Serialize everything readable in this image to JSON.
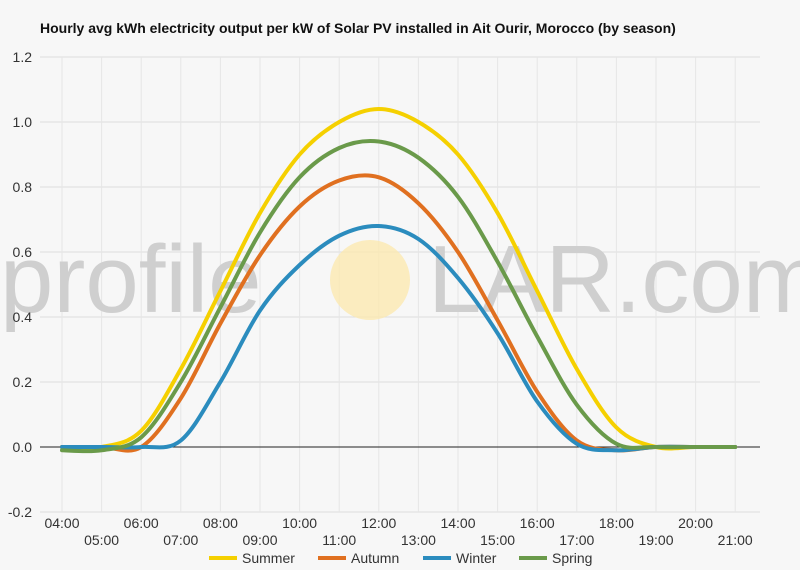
{
  "chart_data": {
    "type": "line",
    "title": "Hourly avg kWh electricity output per kW of Solar PV installed in Ait Ourir, Morocco (by season)",
    "xlabel": "",
    "ylabel": "",
    "ylim": [
      -0.2,
      1.2
    ],
    "yticks": [
      "-0.2",
      "0.0",
      "0.2",
      "0.4",
      "0.6",
      "0.8",
      "1.0",
      "1.2"
    ],
    "categories": [
      "04:00",
      "05:00",
      "06:00",
      "07:00",
      "08:00",
      "09:00",
      "10:00",
      "11:00",
      "12:00",
      "13:00",
      "14:00",
      "15:00",
      "16:00",
      "17:00",
      "18:00",
      "19:00",
      "20:00",
      "21:00"
    ],
    "grid": true,
    "legend": "bottom",
    "series": [
      {
        "name": "Summer",
        "color": "#f5d000",
        "values": [
          0.0,
          0.0,
          0.05,
          0.24,
          0.48,
          0.72,
          0.9,
          1.0,
          1.04,
          1.0,
          0.9,
          0.72,
          0.48,
          0.24,
          0.06,
          0.0,
          0.0,
          0.0
        ]
      },
      {
        "name": "Autumn",
        "color": "#e07020",
        "values": [
          0.0,
          0.0,
          0.0,
          0.15,
          0.38,
          0.59,
          0.74,
          0.82,
          0.83,
          0.75,
          0.6,
          0.39,
          0.17,
          0.02,
          -0.01,
          0.0,
          0.0,
          0.0
        ]
      },
      {
        "name": "Winter",
        "color": "#2b8cbe",
        "values": [
          0.0,
          0.0,
          0.0,
          0.02,
          0.2,
          0.42,
          0.56,
          0.65,
          0.68,
          0.64,
          0.52,
          0.35,
          0.14,
          0.01,
          -0.01,
          0.0,
          0.0,
          0.0
        ]
      },
      {
        "name": "Spring",
        "color": "#6a9a4a",
        "values": [
          -0.01,
          -0.01,
          0.03,
          0.2,
          0.43,
          0.66,
          0.83,
          0.92,
          0.94,
          0.89,
          0.77,
          0.57,
          0.34,
          0.13,
          0.01,
          0.0,
          0.0,
          0.0
        ]
      }
    ]
  },
  "watermark": {
    "left": "profile",
    "sun": "SO",
    "right": "LAR.com"
  }
}
